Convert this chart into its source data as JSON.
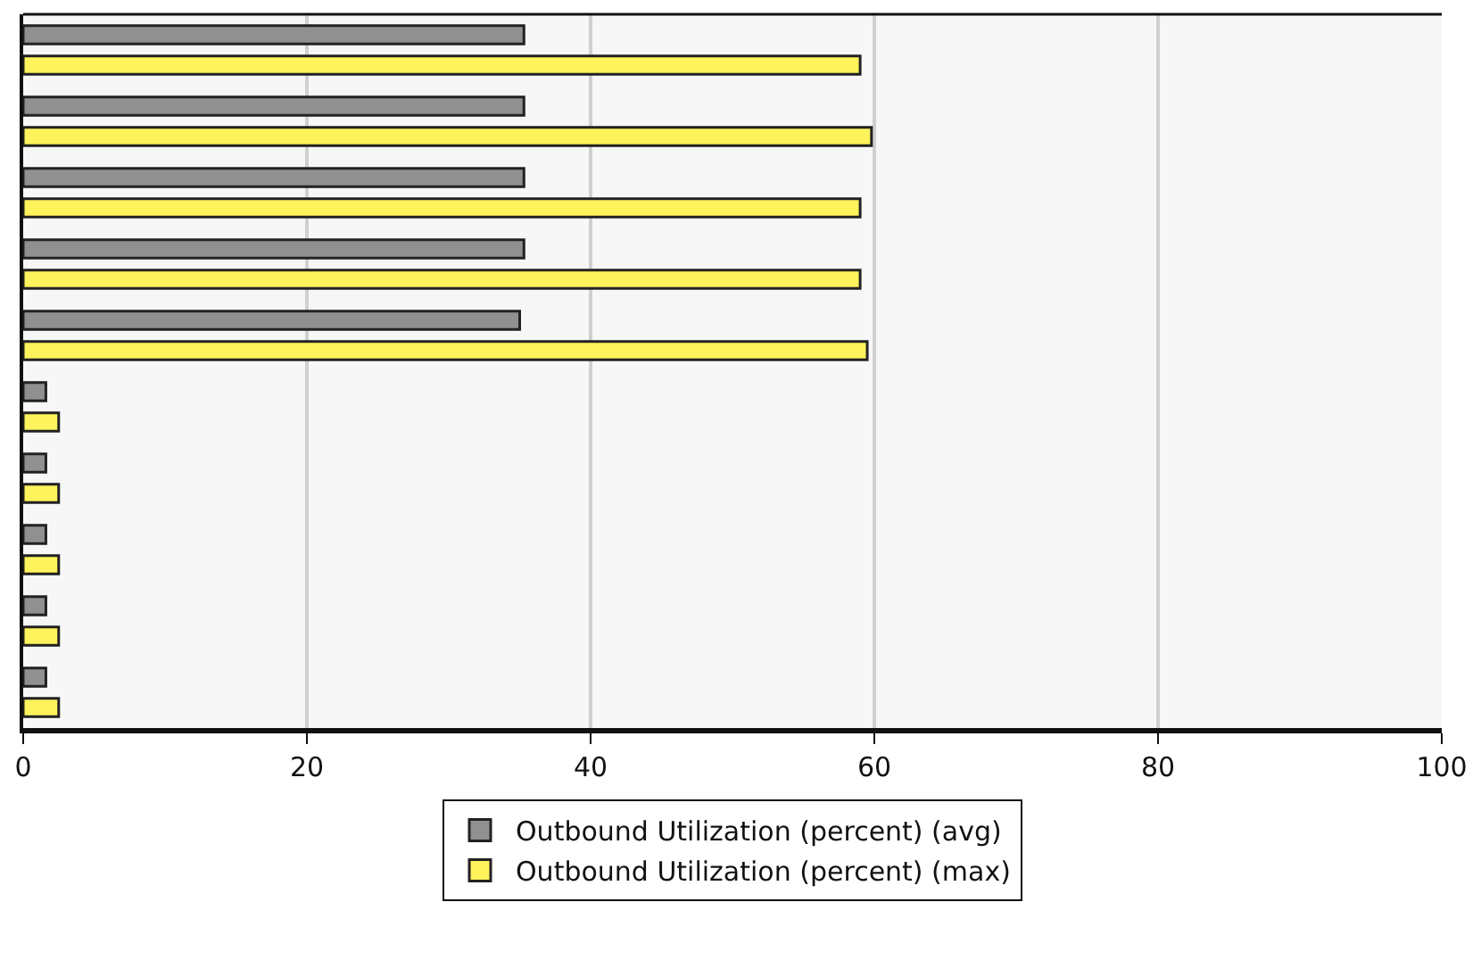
{
  "chart_data": {
    "type": "bar",
    "orientation": "horizontal",
    "categories": [
      null,
      null,
      null,
      null,
      null,
      null,
      null,
      null,
      null,
      null
    ],
    "series": [
      {
        "name": "Outbound Utilization (percent) (avg)",
        "color": "#909090",
        "values": [
          35.3,
          35.3,
          35.3,
          35.3,
          35.0,
          1.6,
          1.6,
          1.6,
          1.6,
          1.6
        ]
      },
      {
        "name": "Outbound Utilization (percent) (max)",
        "color": "#fff35c",
        "values": [
          59.0,
          59.8,
          59.0,
          59.0,
          59.5,
          2.5,
          2.5,
          2.5,
          2.5,
          2.5
        ]
      }
    ],
    "xlim": [
      0,
      100
    ],
    "xticks": [
      0,
      20,
      40,
      60,
      80,
      100
    ],
    "grid": "x",
    "legend": "bottom",
    "tick_labels": "x"
  }
}
